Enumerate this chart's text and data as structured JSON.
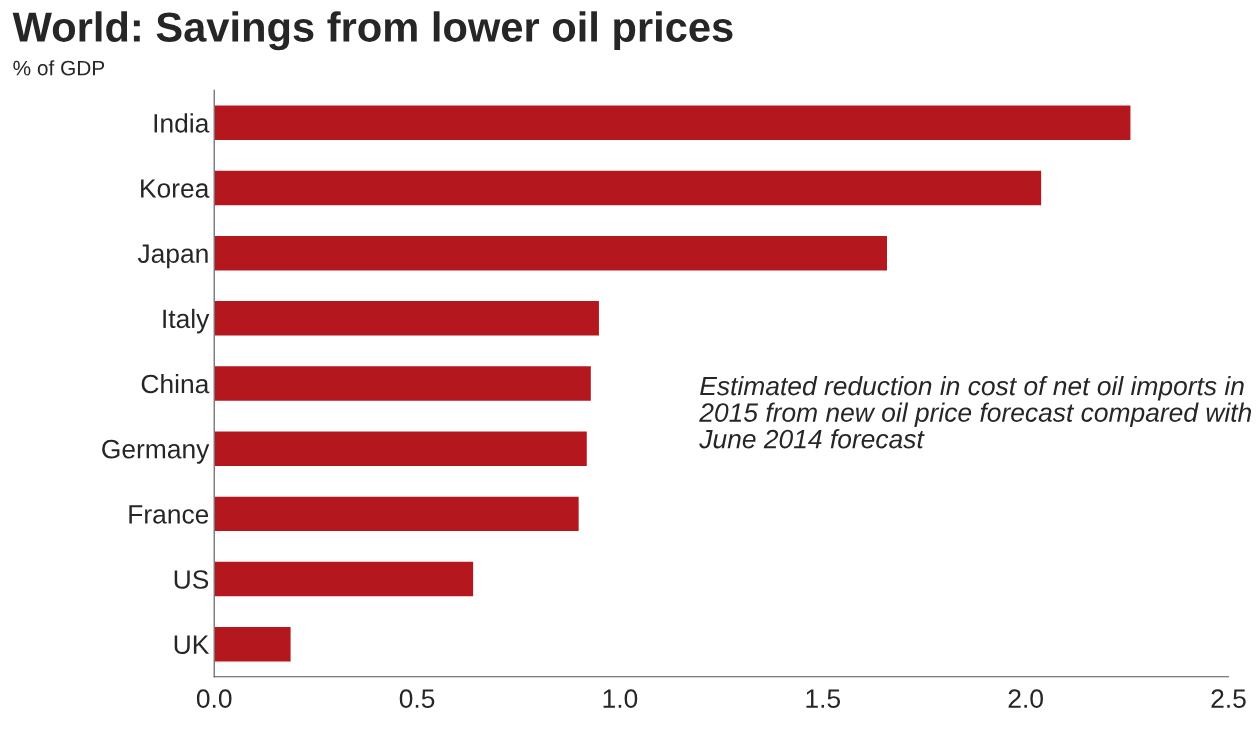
{
  "chart_data": {
    "type": "bar",
    "orientation": "horizontal",
    "title": "World: Savings from lower oil prices",
    "subtitle": "% of GDP",
    "categories": [
      "India",
      "Korea",
      "Japan",
      "Italy",
      "China",
      "Germany",
      "France",
      "US",
      "UK"
    ],
    "values": [
      2.26,
      2.04,
      1.66,
      0.95,
      0.93,
      0.92,
      0.9,
      0.64,
      0.19
    ],
    "color": "#b5171e",
    "xlim": [
      0,
      2.5
    ],
    "xticks": [
      {
        "value": 0,
        "label": "0.0"
      },
      {
        "value": 0.5,
        "label": "0.5"
      },
      {
        "value": 1,
        "label": "1.0"
      },
      {
        "value": 1.5,
        "label": "1.5"
      },
      {
        "value": 2,
        "label": "2.0"
      },
      {
        "value": 2.5,
        "label": "2.5"
      }
    ],
    "grid": false,
    "legend": false,
    "annotations": [
      "Estimated reduction in cost of net oil imports in 2015 from new oil price forecast compared with June 2014 forecast"
    ]
  }
}
